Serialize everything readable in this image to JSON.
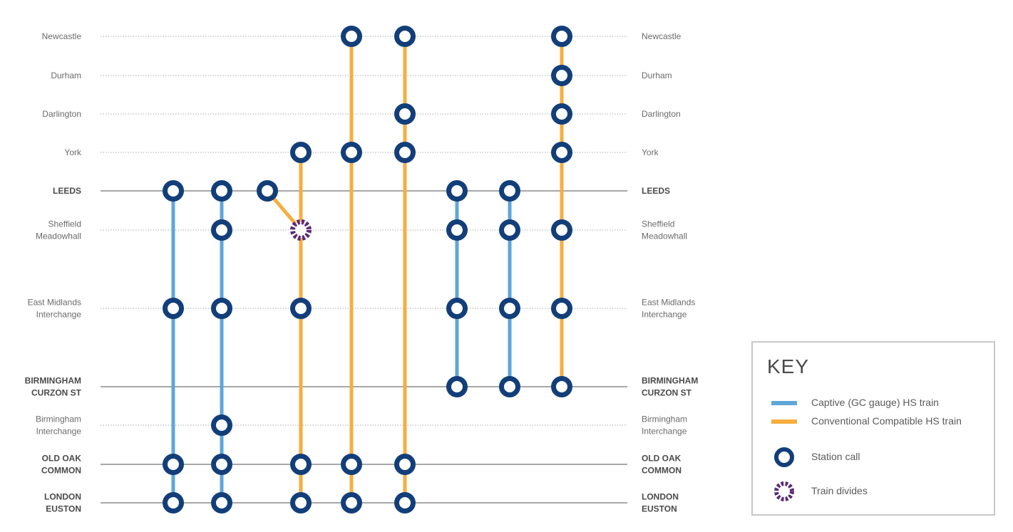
{
  "colors": {
    "captive": "#5fa6d8",
    "conventional": "#f6ae3f",
    "station": "#123e7a",
    "divide": "#5b2a78",
    "rule": "#8a8a8a",
    "dotted": "#bdbdbd"
  },
  "stations": [
    {
      "id": "newcastle",
      "label": [
        "Newcastle"
      ],
      "major": false
    },
    {
      "id": "durham",
      "label": [
        "Durham"
      ],
      "major": false
    },
    {
      "id": "darlington",
      "label": [
        "Darlington"
      ],
      "major": false
    },
    {
      "id": "york",
      "label": [
        "York"
      ],
      "major": false
    },
    {
      "id": "leeds",
      "label": [
        "LEEDS"
      ],
      "major": true
    },
    {
      "id": "sheffield",
      "label": [
        "Sheffield",
        "Meadowhall"
      ],
      "major": false
    },
    {
      "id": "emi",
      "label": [
        "East Midlands",
        "Interchange"
      ],
      "major": false
    },
    {
      "id": "bcs",
      "label": [
        "BIRMINGHAM",
        "CURZON ST"
      ],
      "major": true
    },
    {
      "id": "bhi",
      "label": [
        "Birmingham",
        "Interchange"
      ],
      "major": false
    },
    {
      "id": "ooc",
      "label": [
        "OLD OAK",
        "COMMON"
      ],
      "major": true
    },
    {
      "id": "euston",
      "label": [
        "LONDON",
        "EUSTON"
      ],
      "major": true
    }
  ],
  "services": [
    {
      "type": "captive",
      "calls": [
        "leeds",
        "emi",
        "ooc",
        "euston"
      ]
    },
    {
      "type": "captive",
      "calls": [
        "leeds",
        "sheffield",
        "emi",
        "bhi",
        "ooc",
        "euston"
      ]
    },
    {
      "type": "conventional",
      "calls": [
        "york",
        "emi",
        "ooc",
        "euston"
      ],
      "divides_at": "sheffield",
      "branch_from": "leeds"
    },
    {
      "type": "conventional",
      "calls": [
        "newcastle",
        "york",
        "ooc",
        "euston"
      ]
    },
    {
      "type": "conventional",
      "calls": [
        "newcastle",
        "darlington",
        "york",
        "ooc",
        "euston"
      ]
    },
    {
      "type": "captive",
      "calls": [
        "leeds",
        "sheffield",
        "emi",
        "bcs"
      ]
    },
    {
      "type": "captive",
      "calls": [
        "leeds",
        "sheffield",
        "emi",
        "bcs"
      ]
    },
    {
      "type": "conventional",
      "calls": [
        "newcastle",
        "durham",
        "darlington",
        "york",
        "sheffield",
        "emi",
        "bcs"
      ]
    }
  ],
  "key": {
    "title": "KEY",
    "captive_label": "Captive (GC gauge) HS train",
    "conventional_label": "Conventional Compatible HS train",
    "station_label": "Station call",
    "divide_label": "Train divides"
  }
}
